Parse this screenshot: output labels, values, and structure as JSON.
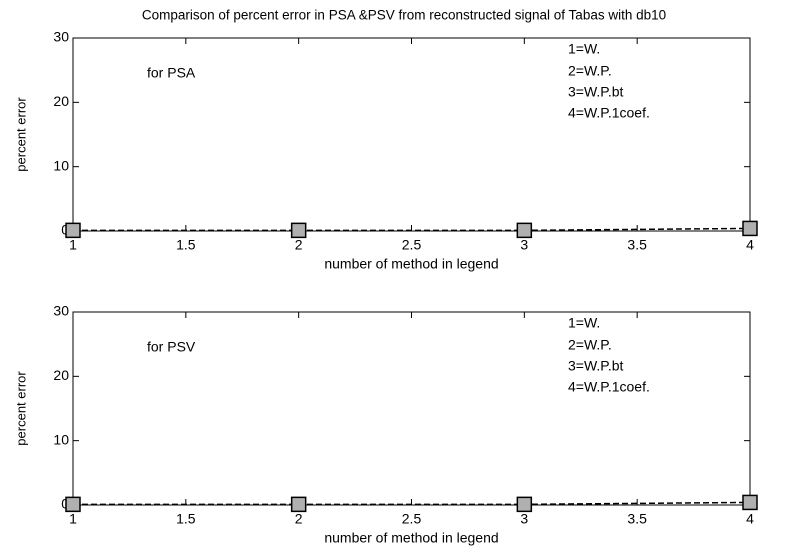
{
  "chart_data": [
    {
      "type": "line",
      "title": "Comparison of percent error in  PSA &PSV from reconstructed signal of Tabas with db10",
      "annotations": [
        "for PSA",
        "1=W.",
        "2=W.P.",
        "3=W.P.bt",
        "4=W.P.1coef."
      ],
      "x_label": "number of method in legend",
      "y_label": "percent error",
      "x": [
        1,
        2,
        3,
        4
      ],
      "series": [
        {
          "color": "#b0b0b0",
          "values": [
            0.1,
            0.1,
            0.1,
            0.4
          ]
        }
      ],
      "xlim": [
        1,
        4
      ],
      "xticks": [
        1,
        1.5,
        2,
        2.5,
        3,
        3.5,
        4
      ],
      "ylim": [
        0,
        30
      ],
      "yticks": [
        0,
        10,
        20,
        30
      ]
    },
    {
      "type": "line",
      "annotations": [
        "for PSV",
        "1=W.",
        "2=W.P.",
        "3=W.P.bt",
        "4=W.P.1coef."
      ],
      "x_label": "number of method in legend",
      "y_label": "percent error",
      "x": [
        1,
        2,
        3,
        4
      ],
      "series": [
        {
          "color": "#b0b0b0",
          "values": [
            0.1,
            0.1,
            0.1,
            0.4
          ]
        }
      ],
      "xlim": [
        1,
        4
      ],
      "xticks": [
        1,
        1.5,
        2,
        2.5,
        3,
        3.5,
        4
      ],
      "ylim": [
        0,
        30
      ],
      "yticks": [
        0,
        10,
        20,
        30
      ]
    }
  ]
}
